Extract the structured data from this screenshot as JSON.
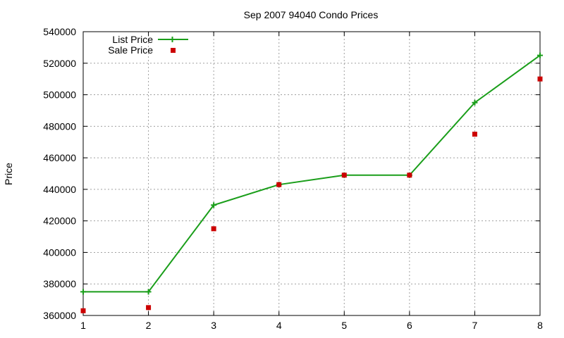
{
  "chart_data": {
    "type": "line",
    "title": "Sep 2007 94040 Condo Prices",
    "xlabel": "",
    "ylabel": "Price",
    "xlim": [
      1,
      8
    ],
    "ylim": [
      360000,
      540000
    ],
    "xticks": [
      "1",
      "2",
      "3",
      "4",
      "5",
      "6",
      "7",
      "8"
    ],
    "yticks": [
      "360000",
      "380000",
      "400000",
      "420000",
      "440000",
      "460000",
      "480000",
      "500000",
      "520000",
      "540000"
    ],
    "grid": true,
    "legend": "top-left",
    "x": [
      1,
      2,
      3,
      4,
      5,
      6,
      7,
      8
    ],
    "series": [
      {
        "name": "List Price",
        "style": "line+points",
        "marker": "plus",
        "color": "#1a9e1a",
        "values": [
          375000,
          375000,
          430000,
          443000,
          449000,
          449000,
          495000,
          525000
        ]
      },
      {
        "name": "Sale Price",
        "style": "points",
        "marker": "square",
        "color": "#cc0000",
        "values": [
          363000,
          365000,
          415000,
          443000,
          449000,
          449000,
          475000,
          510000
        ]
      }
    ]
  }
}
